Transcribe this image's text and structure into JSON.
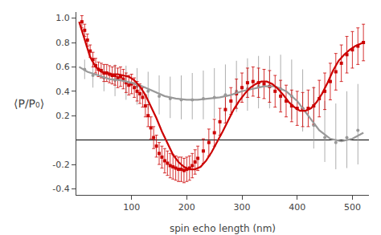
{
  "chart_data": {
    "type": "scatter",
    "xlabel": "spin echo length (nm)",
    "ylabel": "⟨P/P₀⟩",
    "xlim": [
      0,
      530
    ],
    "ylim": [
      -0.45,
      1.05
    ],
    "xticks": [
      100,
      200,
      300,
      400,
      500
    ],
    "yticks": [
      {
        "value": 1.0,
        "label": "1.0"
      },
      0.8,
      0.6,
      0.4,
      0.2,
      -0.2,
      -0.4
    ],
    "grid": false,
    "series": [
      {
        "type": "scatter",
        "marker": "circle",
        "color": "#999999",
        "x": [
          15,
          30,
          50,
          70,
          90,
          110,
          130,
          150,
          170,
          190,
          210,
          230,
          250,
          270,
          290,
          310,
          330,
          350,
          370,
          390,
          410,
          430,
          450,
          470,
          490,
          510
        ],
        "values": [
          0.58,
          0.53,
          0.51,
          0.49,
          0.47,
          0.44,
          0.4,
          0.36,
          0.34,
          0.33,
          0.33,
          0.34,
          0.35,
          0.37,
          0.4,
          0.42,
          0.44,
          0.44,
          0.42,
          0.36,
          0.26,
          0.12,
          0.02,
          -0.02,
          0.02,
          0.08
        ],
        "yerr_lo": [
          0.08,
          0.1,
          0.11,
          0.13,
          0.14,
          0.15,
          0.15,
          0.15,
          0.16,
          0.16,
          0.16,
          0.17,
          0.17,
          0.17,
          0.17,
          0.18,
          0.18,
          0.18,
          0.18,
          0.19,
          0.19,
          0.19,
          0.2,
          0.22,
          0.25,
          0.28
        ],
        "yerr_hi": [
          0.08,
          0.1,
          0.11,
          0.13,
          0.14,
          0.15,
          0.16,
          0.17,
          0.18,
          0.2,
          0.22,
          0.23,
          0.24,
          0.25,
          0.25,
          0.25,
          0.25,
          0.25,
          0.28,
          0.3,
          0.32,
          0.32,
          0.3,
          0.32,
          0.38,
          0.38
        ]
      },
      {
        "type": "scatter",
        "marker": "square",
        "color": "#cc0000",
        "x": [
          10,
          15,
          20,
          25,
          30,
          35,
          40,
          45,
          50,
          55,
          60,
          65,
          70,
          75,
          80,
          85,
          90,
          95,
          100,
          105,
          110,
          115,
          120,
          125,
          130,
          135,
          140,
          145,
          150,
          155,
          160,
          165,
          170,
          175,
          180,
          185,
          190,
          195,
          200,
          205,
          210,
          215,
          220,
          230,
          240,
          250,
          260,
          270,
          280,
          290,
          300,
          310,
          320,
          330,
          340,
          350,
          360,
          370,
          380,
          390,
          400,
          410,
          420,
          430,
          440,
          450,
          460,
          470,
          480,
          490,
          500,
          510,
          520
        ],
        "values": [
          0.97,
          0.9,
          0.82,
          0.73,
          0.66,
          0.61,
          0.58,
          0.57,
          0.55,
          0.55,
          0.54,
          0.53,
          0.53,
          0.51,
          0.52,
          0.5,
          0.47,
          0.45,
          0.46,
          0.43,
          0.4,
          0.38,
          0.35,
          0.28,
          0.2,
          0.1,
          0.02,
          -0.05,
          -0.11,
          -0.14,
          -0.17,
          -0.19,
          -0.21,
          -0.22,
          -0.23,
          -0.24,
          -0.24,
          -0.25,
          -0.24,
          -0.23,
          -0.21,
          -0.18,
          -0.15,
          -0.09,
          -0.02,
          0.06,
          0.15,
          0.25,
          0.32,
          0.38,
          0.43,
          0.47,
          0.48,
          0.47,
          0.46,
          0.44,
          0.4,
          0.36,
          0.32,
          0.28,
          0.26,
          0.25,
          0.26,
          0.28,
          0.34,
          0.4,
          0.48,
          0.56,
          0.63,
          0.7,
          0.74,
          0.77,
          0.8
        ],
        "yerr_lo": [
          0.05,
          0.05,
          0.05,
          0.05,
          0.06,
          0.06,
          0.06,
          0.06,
          0.07,
          0.07,
          0.07,
          0.07,
          0.08,
          0.08,
          0.08,
          0.08,
          0.08,
          0.08,
          0.08,
          0.08,
          0.08,
          0.08,
          0.08,
          0.09,
          0.09,
          0.09,
          0.09,
          0.09,
          0.09,
          0.09,
          0.1,
          0.1,
          0.1,
          0.1,
          0.1,
          0.1,
          0.1,
          0.1,
          0.1,
          0.1,
          0.1,
          0.1,
          0.1,
          0.1,
          0.11,
          0.11,
          0.11,
          0.11,
          0.11,
          0.12,
          0.12,
          0.12,
          0.12,
          0.12,
          0.12,
          0.13,
          0.13,
          0.13,
          0.13,
          0.13,
          0.14,
          0.14,
          0.15,
          0.15,
          0.15,
          0.15,
          0.15,
          0.15,
          0.15,
          0.15,
          0.15,
          0.15,
          0.15
        ],
        "yerr_hi": [
          0.05,
          0.05,
          0.05,
          0.05,
          0.06,
          0.06,
          0.06,
          0.06,
          0.07,
          0.07,
          0.07,
          0.07,
          0.08,
          0.08,
          0.08,
          0.08,
          0.08,
          0.08,
          0.08,
          0.08,
          0.08,
          0.08,
          0.08,
          0.09,
          0.09,
          0.09,
          0.09,
          0.09,
          0.09,
          0.09,
          0.1,
          0.1,
          0.1,
          0.1,
          0.1,
          0.1,
          0.1,
          0.1,
          0.1,
          0.1,
          0.1,
          0.1,
          0.1,
          0.1,
          0.11,
          0.11,
          0.11,
          0.11,
          0.11,
          0.12,
          0.12,
          0.12,
          0.12,
          0.12,
          0.12,
          0.13,
          0.13,
          0.13,
          0.13,
          0.13,
          0.14,
          0.14,
          0.15,
          0.15,
          0.15,
          0.15,
          0.15,
          0.15,
          0.15,
          0.15,
          0.15,
          0.15,
          0.15
        ]
      },
      {
        "type": "line",
        "line_style": "solid",
        "color": "#999999",
        "x": [
          5,
          20,
          40,
          60,
          80,
          100,
          120,
          140,
          160,
          180,
          200,
          220,
          240,
          260,
          280,
          300,
          320,
          340,
          360,
          380,
          400,
          420,
          440,
          460,
          480,
          500,
          520
        ],
        "values": [
          0.6,
          0.56,
          0.53,
          0.5,
          0.49,
          0.47,
          0.44,
          0.4,
          0.36,
          0.34,
          0.33,
          0.33,
          0.34,
          0.35,
          0.37,
          0.4,
          0.42,
          0.44,
          0.44,
          0.4,
          0.32,
          0.2,
          0.08,
          0.01,
          -0.01,
          0.01,
          0.06
        ]
      },
      {
        "type": "line",
        "line_style": "solid",
        "color": "#cc0000",
        "x": [
          5,
          15,
          25,
          35,
          45,
          55,
          65,
          75,
          85,
          95,
          105,
          115,
          125,
          135,
          145,
          155,
          165,
          175,
          185,
          195,
          205,
          215,
          225,
          235,
          245,
          255,
          265,
          275,
          285,
          295,
          305,
          315,
          325,
          335,
          345,
          355,
          365,
          375,
          385,
          395,
          405,
          415,
          425,
          435,
          445,
          455,
          465,
          475,
          485,
          495,
          505,
          520
        ],
        "values": [
          0.97,
          0.82,
          0.68,
          0.6,
          0.56,
          0.55,
          0.54,
          0.54,
          0.53,
          0.52,
          0.49,
          0.44,
          0.37,
          0.28,
          0.18,
          0.07,
          -0.03,
          -0.12,
          -0.18,
          -0.22,
          -0.24,
          -0.24,
          -0.22,
          -0.17,
          -0.1,
          -0.02,
          0.07,
          0.16,
          0.25,
          0.32,
          0.38,
          0.43,
          0.46,
          0.48,
          0.48,
          0.46,
          0.42,
          0.37,
          0.31,
          0.27,
          0.24,
          0.24,
          0.26,
          0.31,
          0.38,
          0.47,
          0.57,
          0.65,
          0.7,
          0.74,
          0.77,
          0.8
        ]
      }
    ]
  }
}
